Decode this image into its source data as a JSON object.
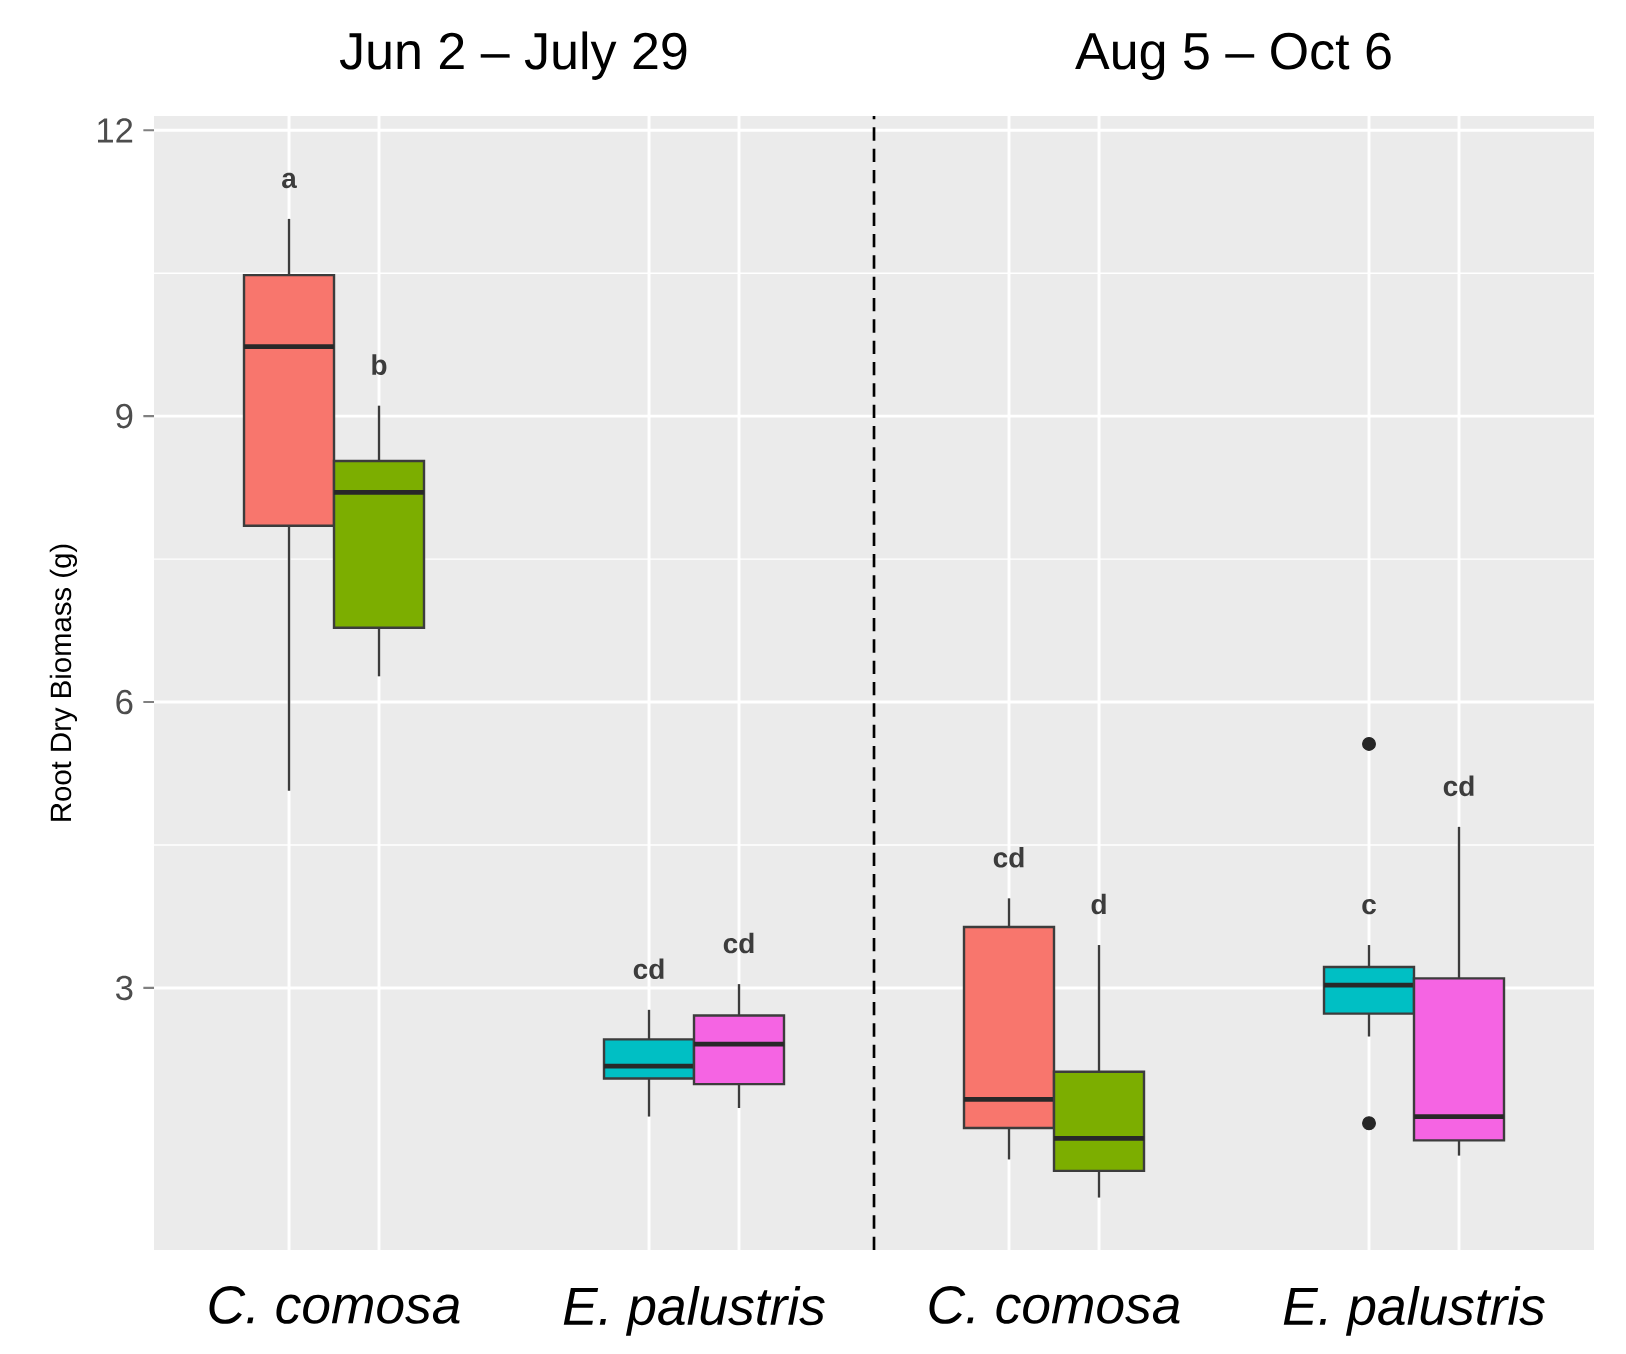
{
  "chart_data": [
    {
      "type": "box",
      "title": "Jun 2 – July 29",
      "categories": [
        "*C. comosa*",
        "*E. palustris*"
      ],
      "ylabel": "Root Dry Biomass (g)",
      "ylim": [
        0.25,
        12.15
      ],
      "yticks": [
        3,
        6,
        9,
        12
      ],
      "grid": true,
      "series": [
        {
          "colors": [
            "#f8766d",
            "#00bfc4"
          ],
          "boxes": [
            {
              "low": 5.07,
              "q1": 7.85,
              "median": 9.73,
              "q3": 10.48,
              "high": 11.07
            },
            {
              "low": 1.65,
              "q1": 2.05,
              "median": 2.18,
              "q3": 2.46,
              "high": 2.77
            }
          ]
        },
        {
          "colors": [
            "#7cae00",
            "#f564e3"
          ],
          "boxes": [
            {
              "low": 6.27,
              "q1": 6.78,
              "median": 8.2,
              "q3": 8.53,
              "high": 9.11
            },
            {
              "low": 1.74,
              "q1": 1.99,
              "median": 2.41,
              "q3": 2.71,
              "high": 3.04
            }
          ]
        }
      ],
      "annotations": [
        "a",
        "b",
        "cd",
        "cd"
      ]
    },
    {
      "type": "box",
      "title": "Aug 5 – Oct 6",
      "categories": [
        "*C. comosa*",
        "*E. palustris*"
      ],
      "ylim": [
        0.25,
        12.15
      ],
      "yticks": [
        3,
        6,
        9,
        12
      ],
      "grid": true,
      "tick_labels": "x",
      "series": [
        {
          "colors": [
            "#f8766d",
            "#00bfc4"
          ],
          "boxes": [
            {
              "low": 1.2,
              "q1": 1.53,
              "median": 1.83,
              "q3": 3.64,
              "high": 3.94
            },
            {
              "low": 2.49,
              "q1": 2.73,
              "median": 3.03,
              "q3": 3.22,
              "high": 3.45,
              "outliers": [
                5.56,
                1.58
              ]
            }
          ]
        },
        {
          "colors": [
            "#7cae00",
            "#f564e3"
          ],
          "boxes": [
            {
              "low": 0.8,
              "q1": 1.08,
              "median": 1.42,
              "q3": 2.12,
              "high": 3.45
            },
            {
              "low": 1.24,
              "q1": 1.4,
              "median": 1.65,
              "q3": 3.1,
              "high": 4.69
            }
          ]
        }
      ],
      "annotations": [
        "cd",
        "d",
        "c",
        "cd"
      ]
    }
  ]
}
